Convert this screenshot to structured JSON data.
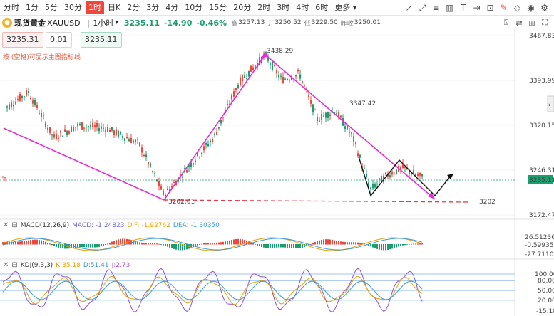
{
  "timeframes": [
    "分时",
    "1分",
    "5分",
    "30分",
    "1时",
    "日K",
    "2分",
    "3分",
    "4分",
    "10分",
    "15分",
    "20分",
    "2时",
    "3时",
    "4时",
    "6时",
    "更多"
  ],
  "active_timeframe": "1时",
  "toolbar_icons": [
    "trend-line-icon",
    "ray-icon",
    "horizontal-line-icon",
    "channel-icon",
    "text-tool-icon",
    "measure-icon",
    "clear-icon",
    "layers-icon",
    "settings-icon",
    "eraser-icon",
    "visibility-icon",
    "more-icon"
  ],
  "symbol": {
    "name": "现货黄金",
    "code": "XAUUSD",
    "period": "1小时",
    "price": "3235.11",
    "change": "-14.90",
    "change_pct": "-0.46%",
    "high_label": "高",
    "high": "3257.13",
    "open_label": "开",
    "open": "3250.52",
    "low_label": "低",
    "low": "3229.50",
    "prev_label": "昨收",
    "prev": "3250.01"
  },
  "order": {
    "sell_price": "3235.31",
    "lots": "0.01",
    "buy_price": "3235.11"
  },
  "note": "按 (空格)可显示主图指标线",
  "price_axis": {
    "labels": [
      "3467.83",
      "3393.99",
      "3320.15",
      "3246.31",
      "3172.47"
    ],
    "current": "3235.11"
  },
  "annotations": {
    "peak": "3438.29",
    "low": "3202.01",
    "mid_peak": "3347.42",
    "support": "3202"
  },
  "macd": {
    "title": "MACD(12,26,9)",
    "macd_label": "MACD: -1.24823",
    "dif_label": "DIF: -1.92762",
    "dea_label": "DEA: -1.30350",
    "axis": [
      "26.51236",
      "-0.59935",
      "-27.71106"
    ]
  },
  "kdj": {
    "title": "KDJ(9,3,3)",
    "k_label": "K:35.18",
    "d_label": "D:51.41",
    "j_label": "J:2.73",
    "axis": [
      "100.00",
      "80.00",
      "50.00",
      "20.00",
      "-15.18"
    ]
  },
  "colors": {
    "up": "#f0463c",
    "down": "#1b9d6e",
    "trend": "#e52ad9",
    "support": "#e8394a"
  }
}
